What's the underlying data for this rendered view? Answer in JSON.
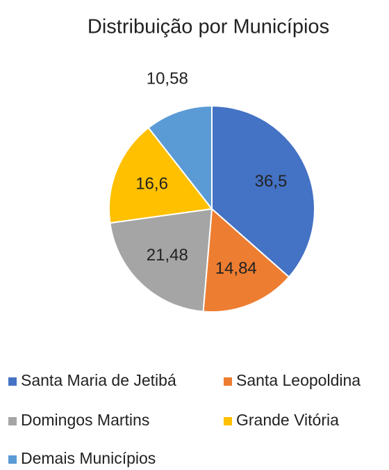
{
  "chart_data": {
    "type": "pie",
    "title": "Distribuição por Municípios",
    "categories": [
      "Santa Maria de Jetibá",
      "Santa Leopoldina",
      "Domingos Martins",
      "Grande Vitória",
      "Demais Municípios"
    ],
    "values": [
      36.5,
      14.84,
      21.48,
      16.6,
      10.58
    ],
    "value_labels": [
      "36,5",
      "14,84",
      "21,48",
      "16,6",
      "10,58"
    ],
    "colors": [
      "#4472c4",
      "#ed7d31",
      "#a5a5a5",
      "#ffc000",
      "#5b9bd5"
    ],
    "legend": "bottom"
  }
}
